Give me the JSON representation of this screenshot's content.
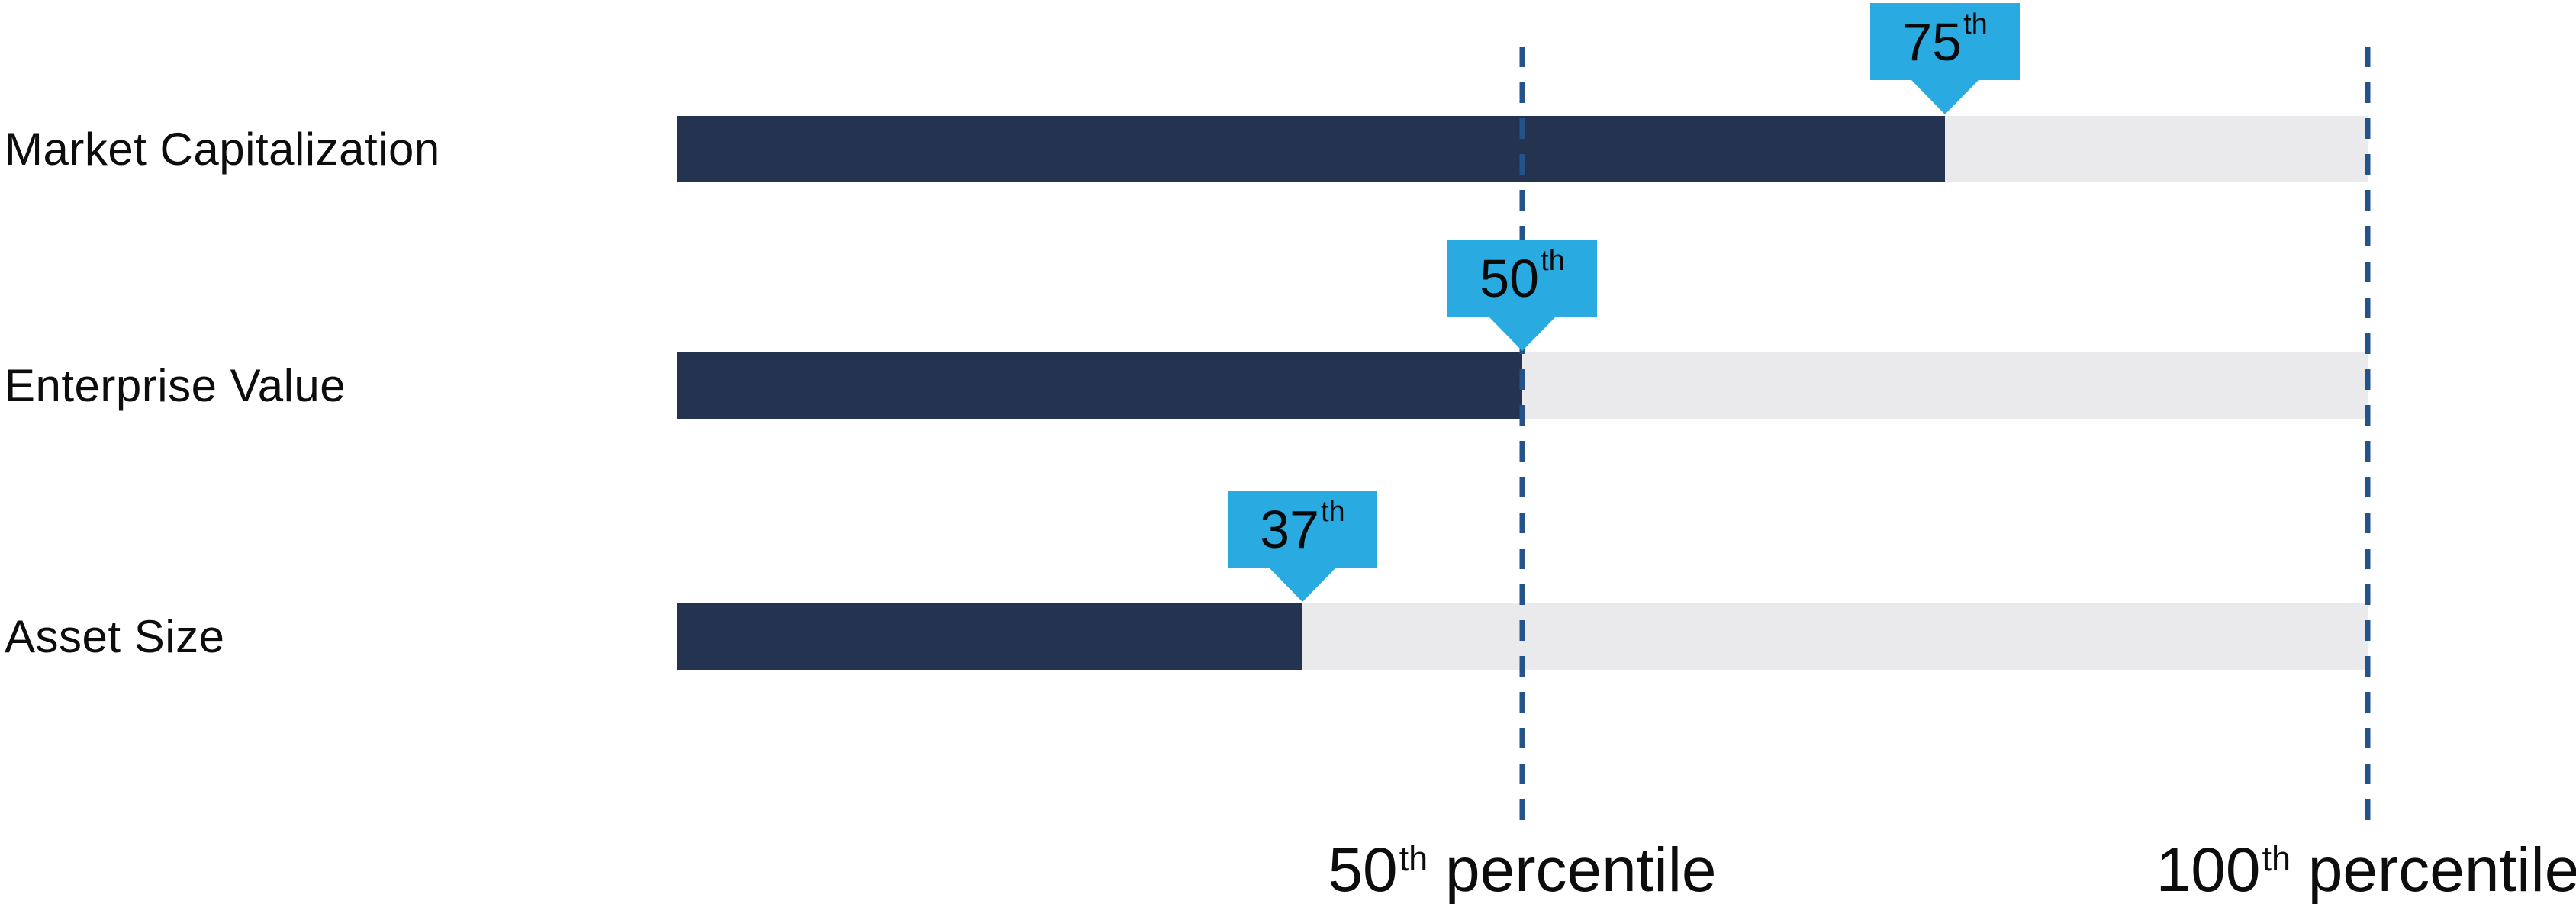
{
  "chart_data": {
    "type": "bar",
    "orientation": "horizontal",
    "title": "",
    "xlabel": "",
    "ylabel": "",
    "categories": [
      "Market Capitalization",
      "Enterprise Value",
      "Asset Size"
    ],
    "values": [
      75,
      50,
      37
    ],
    "value_labels": [
      "75th",
      "50th",
      "37th"
    ],
    "xlim": [
      0,
      100
    ],
    "grid": false,
    "legend_position": "none",
    "reference_lines": [
      {
        "value": 50,
        "label": "50th percentile"
      },
      {
        "value": 100,
        "label": "100th percentile"
      }
    ]
  },
  "rows": [
    {
      "label": "Market Capitalization",
      "percent": 75,
      "marker_num": "75",
      "marker_sup": "th"
    },
    {
      "label": "Enterprise Value",
      "percent": 50,
      "marker_num": "50",
      "marker_sup": "th"
    },
    {
      "label": "Asset Size",
      "percent": 37,
      "marker_num": "37",
      "marker_sup": "th"
    }
  ],
  "axis_labels": [
    {
      "num": "50",
      "sup": "th",
      "rest": " percentile",
      "percent": 50
    },
    {
      "num": "100",
      "sup": "th",
      "rest": " percentile",
      "percent": 100
    }
  ],
  "colors": {
    "bar_fill": "#233350",
    "bar_track": "#EAEAEC",
    "callout": "#29ABE2",
    "dashed_line": "#235389",
    "text": "#0d0d0d"
  }
}
